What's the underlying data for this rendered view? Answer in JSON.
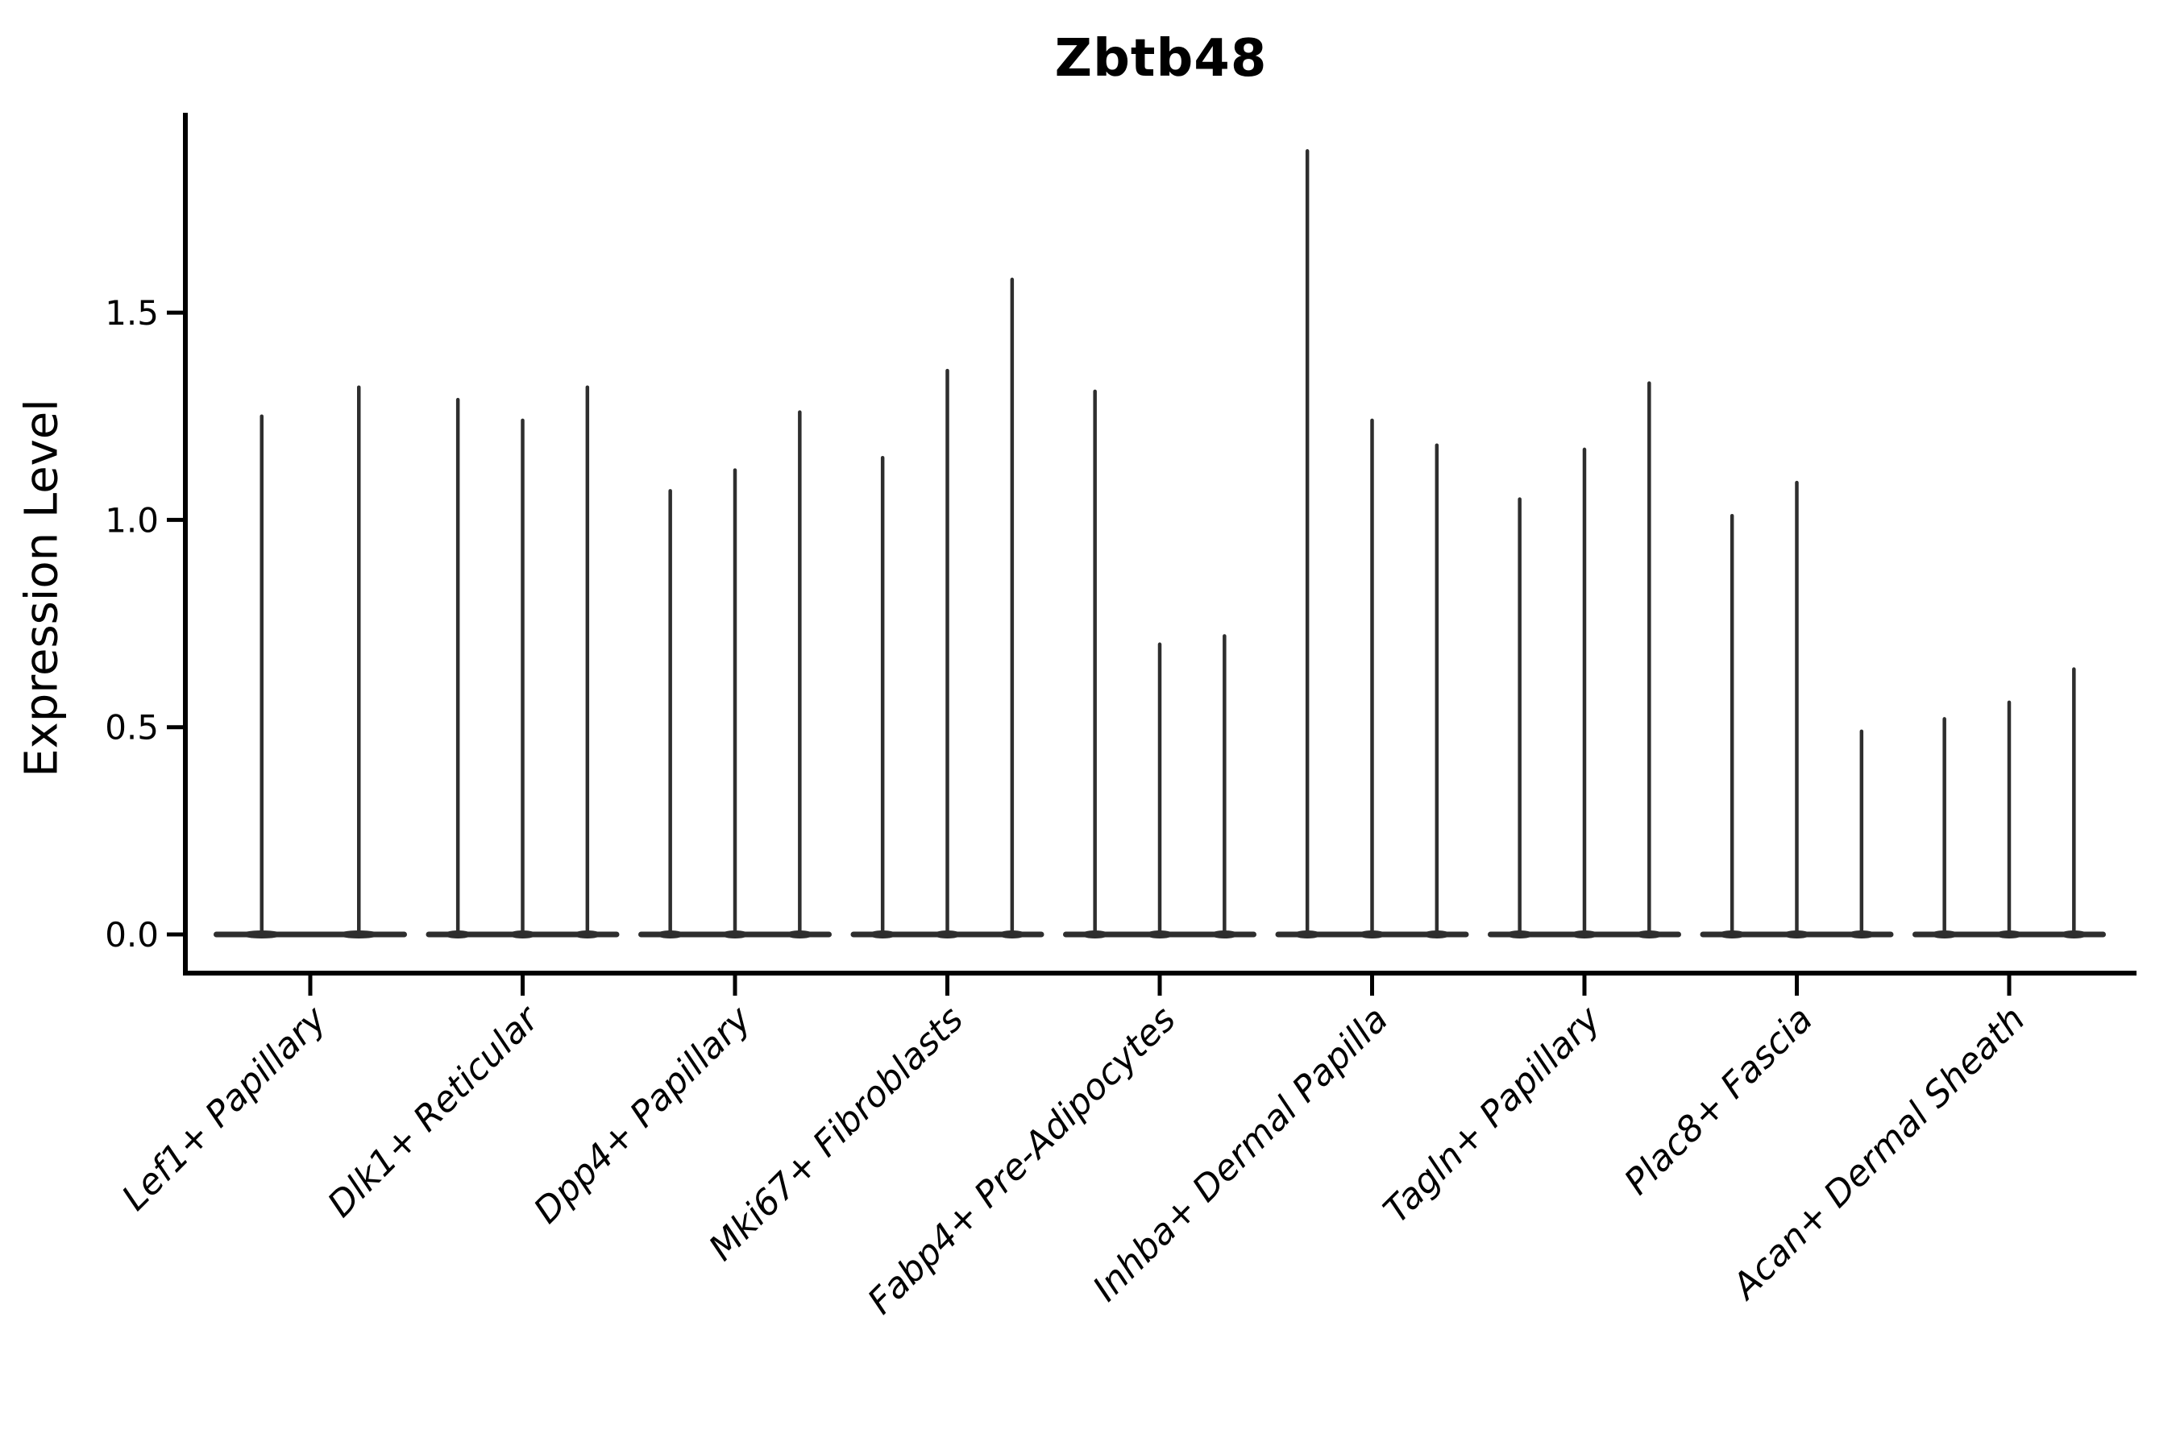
{
  "figure": {
    "title": "Zbtb48",
    "ylabel": "Expression Level",
    "background_color": "#ffffff",
    "axis_color": "#000000",
    "violin_color": "#2e2e2e"
  },
  "axis": {
    "ytick_labels": [
      "0.0",
      "0.5",
      "1.0",
      "1.5"
    ]
  },
  "chart_data": {
    "type": "violin",
    "title": "Zbtb48",
    "xlabel": "",
    "ylabel": "Expression Level",
    "yticks": [
      0.0,
      0.5,
      1.0,
      1.5
    ],
    "ytick_labels": [
      "0.0",
      "0.5",
      "1.0",
      "1.5"
    ],
    "ylim": [
      -0.09,
      1.98
    ],
    "grid": false,
    "legend_position": "none",
    "x_tick_label_rotation_deg": 45,
    "violin_shape_note": "Each violin is a flat wide base at expression 0 with a thin vertical tail reaching its maximum expression value.",
    "categories": [
      "Lef1+ Papillary",
      "Dlk1+ Reticular",
      "Dpp4+ Papillary",
      "Mki67+ Fibroblasts",
      "Fabp4+ Pre-Adipocytes",
      "Inhba+ Dermal Papilla",
      "Tagln+ Papillary",
      "Plac8+ Fascia",
      "Acan+ Dermal Sheath"
    ],
    "groups": [
      {
        "label": "Lef1+ Papillary",
        "baseline_value": 0.0,
        "violin_maxima": [
          1.25,
          1.32
        ]
      },
      {
        "label": "Dlk1+ Reticular",
        "baseline_value": 0.0,
        "violin_maxima": [
          1.29,
          1.24,
          1.32
        ]
      },
      {
        "label": "Dpp4+ Papillary",
        "baseline_value": 0.0,
        "violin_maxima": [
          1.07,
          1.12,
          1.26
        ]
      },
      {
        "label": "Mki67+ Fibroblasts",
        "baseline_value": 0.0,
        "violin_maxima": [
          1.15,
          1.36,
          1.58
        ]
      },
      {
        "label": "Fabp4+ Pre-Adipocytes",
        "baseline_value": 0.0,
        "violin_maxima": [
          1.31,
          0.7,
          0.72
        ]
      },
      {
        "label": "Inhba+ Dermal Papilla",
        "baseline_value": 0.0,
        "violin_maxima": [
          1.89,
          1.24,
          1.18
        ]
      },
      {
        "label": "Tagln+ Papillary",
        "baseline_value": 0.0,
        "violin_maxima": [
          1.05,
          1.17,
          1.33
        ]
      },
      {
        "label": "Plac8+ Fascia",
        "baseline_value": 0.0,
        "violin_maxima": [
          1.01,
          1.09,
          0.49
        ]
      },
      {
        "label": "Acan+ Dermal Sheath",
        "baseline_value": 0.0,
        "violin_maxima": [
          0.52,
          0.56,
          0.64
        ]
      }
    ]
  }
}
